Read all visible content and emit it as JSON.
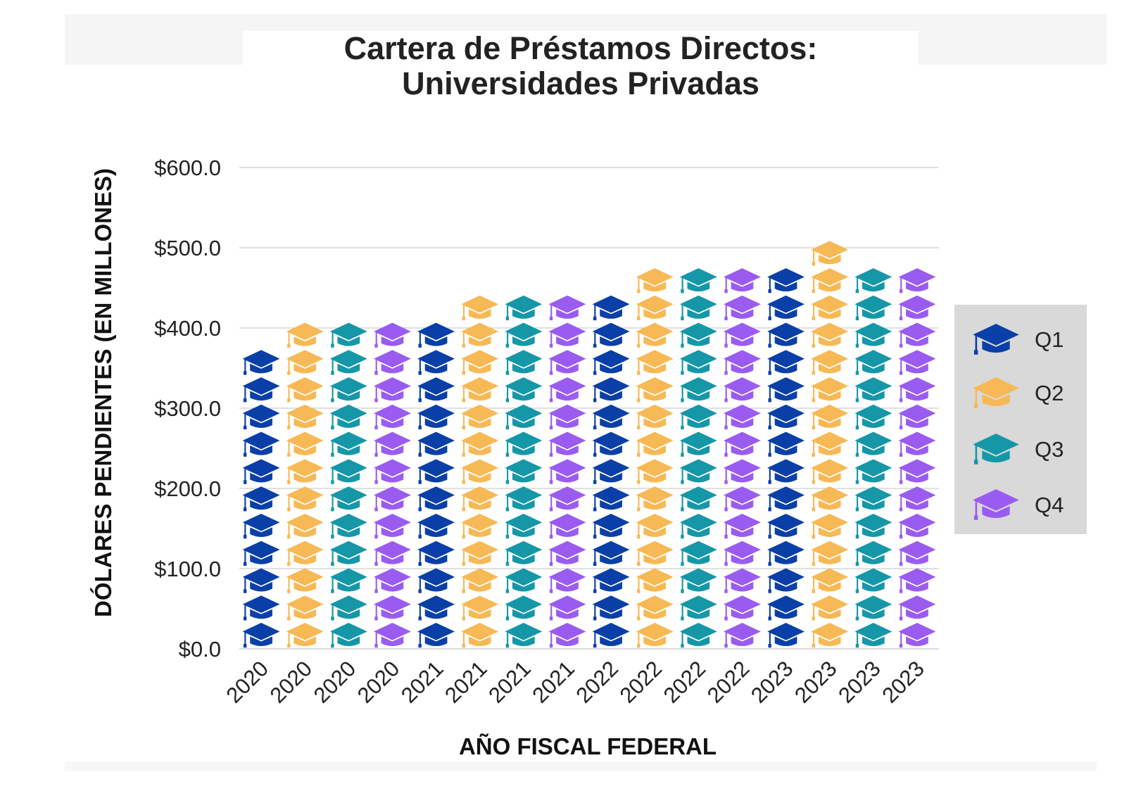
{
  "chart_data": {
    "type": "bar",
    "style": "pictograph (graduation-cap icons stacked per bar)",
    "title_line1": "Cartera de Préstamos Directos:",
    "title_line2": "Universidades Privadas",
    "xlabel": "AÑO FISCAL FEDERAL",
    "ylabel": "DÓLARES PENDIENTES (EN MILLONES)",
    "ylim": [
      0,
      600
    ],
    "yticks": [
      0,
      100,
      200,
      300,
      400,
      500,
      600
    ],
    "ytick_labels": [
      "$0.0",
      "$100.0",
      "$200.0",
      "$300.0",
      "$400.0",
      "$500.0",
      "$600.0"
    ],
    "categories": [
      "2020",
      "2020",
      "2020",
      "2020",
      "2021",
      "2021",
      "2021",
      "2021",
      "2022",
      "2022",
      "2022",
      "2022",
      "2023",
      "2023",
      "2023",
      "2023"
    ],
    "quarters": [
      "Q1",
      "Q2",
      "Q3",
      "Q4",
      "Q1",
      "Q2",
      "Q3",
      "Q4",
      "Q1",
      "Q2",
      "Q3",
      "Q4",
      "Q1",
      "Q2",
      "Q3",
      "Q4"
    ],
    "values": [
      402,
      410,
      410,
      423,
      425,
      460,
      455,
      465,
      465,
      485,
      478,
      492,
      502,
      515,
      500,
      495
    ],
    "legend": [
      {
        "label": "Q1",
        "color": "#0a3fa8"
      },
      {
        "label": "Q2",
        "color": "#f7b955"
      },
      {
        "label": "Q3",
        "color": "#1597a8"
      },
      {
        "label": "Q4",
        "color": "#9a5cf0"
      }
    ],
    "legend_position": "right",
    "grid": true
  }
}
